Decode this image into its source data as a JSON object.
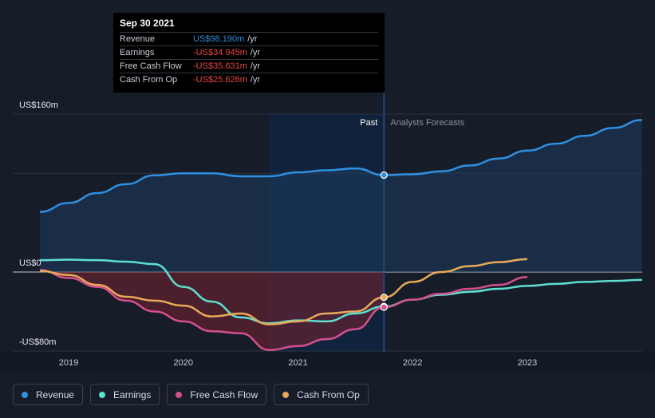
{
  "tooltip": {
    "date": "Sep 30 2021",
    "rows": [
      {
        "label": "Revenue",
        "value": "US$98.190m",
        "unit": "/yr",
        "color": "#2f8fe0"
      },
      {
        "label": "Earnings",
        "value": "-US$34.945m",
        "unit": "/yr",
        "color": "#e84545"
      },
      {
        "label": "Free Cash Flow",
        "value": "-US$35.631m",
        "unit": "/yr",
        "color": "#e84545"
      },
      {
        "label": "Cash From Op",
        "value": "-US$25.626m",
        "unit": "/yr",
        "color": "#e84545"
      }
    ]
  },
  "legend": [
    {
      "label": "Revenue",
      "color": "#2f8fe0"
    },
    {
      "label": "Earnings",
      "color": "#5ee0d0"
    },
    {
      "label": "Free Cash Flow",
      "color": "#d2508e"
    },
    {
      "label": "Cash From Op",
      "color": "#e8a95a"
    }
  ],
  "chart_data": {
    "type": "line",
    "y_tick_labels": [
      "US$160m",
      "US$0",
      "-US$80m"
    ],
    "y_tick_values": [
      160,
      0,
      -80
    ],
    "ylim": [
      -80,
      160
    ],
    "xlim": [
      2018.6,
      2024.0
    ],
    "x_ticks": [
      2019,
      2020,
      2021,
      2022,
      2023
    ],
    "x_tick_labels": [
      "2019",
      "2020",
      "2021",
      "2022",
      "2023"
    ],
    "past_label": "Past",
    "forecast_label": "Analysts Forecasts",
    "past_range": [
      2020.75,
      2021.75
    ],
    "current_x": 2021.75,
    "series": [
      {
        "name": "Revenue",
        "color": "#2f8fe0",
        "fill": true,
        "x": [
          2018.75,
          2019.0,
          2019.25,
          2019.5,
          2019.75,
          2020.0,
          2020.25,
          2020.5,
          2020.75,
          2021.0,
          2021.25,
          2021.5,
          2021.75,
          2022.0,
          2022.25,
          2022.5,
          2022.75,
          2023.0,
          2023.25,
          2023.5,
          2023.75,
          2024.0
        ],
        "values": [
          61,
          70,
          80,
          89,
          98,
          100,
          100,
          97,
          97,
          101,
          103,
          105,
          98.19,
          99,
          102,
          108,
          115,
          123,
          130,
          138,
          146,
          154
        ]
      },
      {
        "name": "Earnings",
        "color": "#5ee0d0",
        "x": [
          2018.75,
          2019.0,
          2019.25,
          2019.5,
          2019.75,
          2020.0,
          2020.25,
          2020.5,
          2020.75,
          2021.0,
          2021.25,
          2021.5,
          2021.75,
          2022.0,
          2022.25,
          2022.5,
          2022.75,
          2023.0,
          2023.25,
          2023.5,
          2023.75,
          2024.0
        ],
        "values": [
          12,
          12.5,
          12,
          10.5,
          8,
          -15,
          -30,
          -46,
          -52,
          -49,
          -50,
          -42,
          -34.945,
          -28,
          -23,
          -20,
          -17,
          -14,
          -12,
          -10,
          -9,
          -8
        ]
      },
      {
        "name": "Free Cash Flow",
        "color": "#d2508e",
        "x": [
          2018.75,
          2019.0,
          2019.25,
          2019.5,
          2019.75,
          2020.0,
          2020.25,
          2020.5,
          2020.75,
          2021.0,
          2021.25,
          2021.5,
          2021.75,
          2022.0,
          2022.25,
          2022.5,
          2022.75,
          2023.0
        ],
        "values": [
          2,
          -6,
          -15,
          -29,
          -40,
          -50,
          -60,
          -62,
          -79,
          -75,
          -68,
          -58,
          -35.631,
          -28,
          -22,
          -17,
          -13,
          -5
        ]
      },
      {
        "name": "Cash From Op",
        "color": "#e8a95a",
        "x": [
          2018.75,
          2019.0,
          2019.25,
          2019.5,
          2019.75,
          2020.0,
          2020.25,
          2020.5,
          2020.75,
          2021.0,
          2021.25,
          2021.5,
          2021.75,
          2022.0,
          2022.25,
          2022.5,
          2022.75,
          2023.0
        ],
        "values": [
          1,
          -3,
          -13,
          -25,
          -29,
          -34,
          -45,
          -42,
          -53,
          -50,
          -42,
          -40,
          -25.626,
          -10,
          0,
          6,
          10,
          13
        ]
      }
    ]
  }
}
